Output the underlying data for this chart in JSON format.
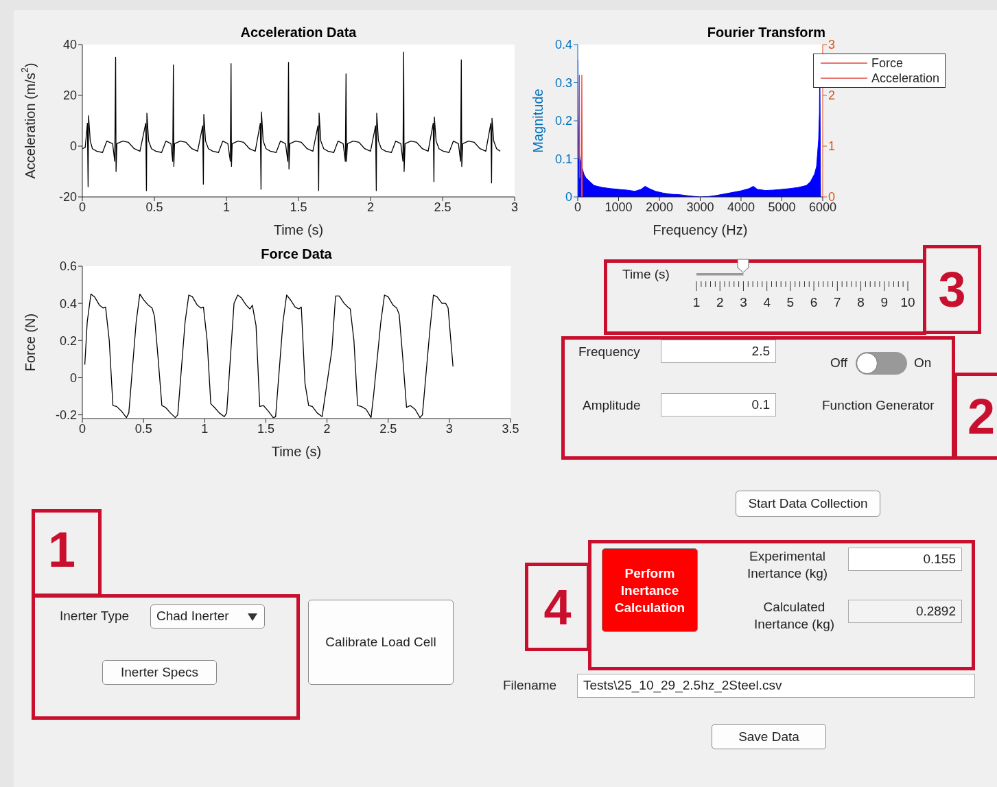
{
  "chart_data": [
    {
      "type": "line",
      "title": "Acceleration Data",
      "xlabel": "Time (s)",
      "ylabel": "Acceleration  (m/s$^{2}$)",
      "xlim": [
        0,
        3
      ],
      "xticks": [
        0,
        0.5,
        1,
        1.5,
        2,
        2.5,
        3
      ],
      "ylim": [
        -20,
        40
      ],
      "yticks": [
        -20,
        0,
        20,
        40
      ],
      "x": [
        0,
        0.02,
        0.035,
        0.04,
        0.043,
        0.055,
        0.07,
        0.1,
        0.14,
        0.17,
        0.21,
        0.225,
        0.231,
        0.234,
        0.24,
        0.28,
        0.32,
        0.36,
        0.4,
        0.44,
        0.445,
        0.448,
        0.46,
        0.48,
        0.51,
        0.55,
        0.58,
        0.615,
        0.627,
        0.632,
        0.635,
        0.64,
        0.68,
        0.72,
        0.76,
        0.8,
        0.835,
        0.84,
        0.843,
        0.855,
        0.875,
        0.905,
        0.945,
        0.975,
        1.01,
        1.027,
        1.032,
        1.035,
        1.04,
        1.08,
        1.12,
        1.16,
        1.2,
        1.235,
        1.24,
        1.243,
        1.255,
        1.275,
        1.305,
        1.345,
        1.375,
        1.41,
        1.426,
        1.431,
        1.434,
        1.44,
        1.48,
        1.52,
        1.56,
        1.6,
        1.635,
        1.64,
        1.643,
        1.655,
        1.675,
        1.705,
        1.745,
        1.775,
        1.81,
        1.825,
        1.83,
        1.833,
        1.84,
        1.88,
        1.92,
        1.96,
        2,
        2.035,
        2.04,
        2.043,
        2.055,
        2.075,
        2.105,
        2.145,
        2.175,
        2.21,
        2.225,
        2.23,
        2.233,
        2.24,
        2.28,
        2.32,
        2.36,
        2.4,
        2.435,
        2.44,
        2.443,
        2.455,
        2.475,
        2.505,
        2.545,
        2.575,
        2.61,
        2.625,
        2.63,
        2.633,
        2.64,
        2.68,
        2.72,
        2.76,
        2.8,
        2.835,
        2.84,
        2.843,
        2.855,
        2.875,
        2.9
      ],
      "series": [
        {
          "color": "#000000",
          "values": [
            -1,
            -0.5,
            9,
            -16,
            12,
            2,
            -1,
            -2,
            -2.5,
            2,
            1,
            -6,
            35,
            -10,
            1,
            2,
            1.5,
            -1,
            -2,
            9,
            -17.5,
            13,
            2,
            -1,
            -2,
            -2.5,
            2,
            1,
            -6,
            32,
            -8,
            1,
            2,
            1.5,
            -1,
            -2,
            8,
            -15,
            12.5,
            2,
            -1,
            -2,
            -2.5,
            2,
            1,
            -6,
            32.5,
            -8,
            1,
            2,
            1.5,
            -1,
            -2,
            9,
            -17,
            13.5,
            2,
            -1,
            -2,
            -2.5,
            2,
            1,
            -6,
            33,
            -9,
            1,
            2,
            1.5,
            -1,
            -2,
            8,
            -17.5,
            13,
            2,
            -1,
            -2,
            -2.5,
            2,
            1,
            -6,
            28.5,
            -6,
            1,
            2,
            1.5,
            -1,
            -2,
            8,
            -17.5,
            13,
            2,
            -1,
            -2,
            -2.5,
            2,
            1,
            -6,
            37,
            -10,
            1,
            2,
            1.5,
            -1,
            -2,
            9,
            -14,
            11.5,
            2,
            -1,
            -2,
            -2.5,
            2,
            1,
            -6,
            34,
            -8,
            1,
            2,
            1.5,
            -1,
            -2,
            9,
            -14.5,
            11,
            2,
            -1,
            -2
          ]
        }
      ]
    },
    {
      "type": "line",
      "title": "Fourier Transform",
      "xlabel": "Frequency (Hz)",
      "ylabel": "Magnitude",
      "xlim": [
        0,
        6000
      ],
      "xticks": [
        0,
        1000,
        2000,
        3000,
        4000,
        5000,
        6000
      ],
      "ylim": [
        0,
        0.4
      ],
      "yticks": [
        0,
        0.1,
        0.2,
        0.3,
        0.4
      ],
      "y2lim": [
        0,
        3
      ],
      "y2ticks": [
        0,
        1,
        2,
        3
      ],
      "legend": "top right",
      "series": [
        {
          "type": "area",
          "color": "#0000ff",
          "x": [
            0,
            10,
            30,
            60,
            100,
            150,
            200,
            300,
            400,
            600,
            800,
            1000,
            1200,
            1400,
            1550,
            1650,
            1750,
            1900,
            2100,
            2300,
            2500,
            2700,
            2900,
            3000,
            3200,
            3400,
            3600,
            3800,
            4000,
            4200,
            4300,
            4400,
            4600,
            4800,
            5000,
            5200,
            5400,
            5600,
            5700,
            5800,
            5850,
            5900,
            5920,
            5930,
            5940,
            5950
          ],
          "values": [
            0.36,
            0.22,
            0.12,
            0.1,
            0.08,
            0.06,
            0.05,
            0.04,
            0.03,
            0.025,
            0.022,
            0.02,
            0.018,
            0.015,
            0.02,
            0.028,
            0.022,
            0.015,
            0.01,
            0.007,
            0.006,
            0.003,
            0.001,
            0,
            0.001,
            0.004,
            0.008,
            0.012,
            0.016,
            0.022,
            0.028,
            0.02,
            0.017,
            0.018,
            0.02,
            0.022,
            0.025,
            0.03,
            0.04,
            0.06,
            0.08,
            0.15,
            0.22,
            0.36,
            0.19,
            0
          ]
        },
        {
          "name": "Force",
          "color": "#e0453c",
          "axis": "y2",
          "x": [
            90,
            100,
            110
          ],
          "values": [
            0,
            2.4,
            0
          ]
        },
        {
          "name": "Acceleration",
          "color": "#e0453c",
          "x": [
            30,
            40,
            50
          ],
          "values": [
            0.1,
            0.32,
            0.05
          ]
        }
      ]
    },
    {
      "type": "line",
      "title": "Force Data",
      "xlabel": "Time (s)",
      "ylabel": "Force (N)",
      "xlim": [
        0,
        3.5
      ],
      "xticks": [
        0,
        0.5,
        1,
        1.5,
        2,
        2.5,
        3,
        3.5
      ],
      "ylim": [
        -0.22,
        0.6
      ],
      "yticks": [
        -0.2,
        0,
        0.2,
        0.4,
        0.6
      ],
      "x": [
        0.02,
        0.04,
        0.07,
        0.1,
        0.14,
        0.17,
        0.19,
        0.22,
        0.25,
        0.28,
        0.32,
        0.36,
        0.38,
        0.44,
        0.47,
        0.5,
        0.54,
        0.57,
        0.59,
        0.62,
        0.65,
        0.68,
        0.72,
        0.76,
        0.78,
        0.84,
        0.87,
        0.9,
        0.94,
        0.97,
        0.99,
        1.02,
        1.05,
        1.08,
        1.12,
        1.16,
        1.18,
        1.24,
        1.27,
        1.3,
        1.34,
        1.37,
        1.39,
        1.42,
        1.45,
        1.48,
        1.52,
        1.56,
        1.58,
        1.64,
        1.67,
        1.7,
        1.74,
        1.77,
        1.79,
        1.82,
        1.85,
        1.88,
        1.92,
        1.96,
        1.98,
        2.04,
        2.07,
        2.1,
        2.14,
        2.17,
        2.19,
        2.22,
        2.25,
        2.28,
        2.32,
        2.36,
        2.38,
        2.44,
        2.47,
        2.5,
        2.54,
        2.57,
        2.59,
        2.62,
        2.65,
        2.68,
        2.72,
        2.76,
        2.78,
        2.84,
        2.87,
        2.9,
        2.94,
        2.97,
        2.99,
        3.03
      ],
      "series": [
        {
          "color": "#000000",
          "values": [
            0.07,
            0.3,
            0.45,
            0.435,
            0.39,
            0.375,
            0.38,
            0.2,
            -0.15,
            -0.155,
            -0.18,
            -0.215,
            -0.19,
            0.3,
            0.45,
            0.42,
            0.39,
            0.375,
            0.33,
            0.1,
            -0.15,
            -0.16,
            -0.19,
            -0.215,
            -0.2,
            0.3,
            0.445,
            0.435,
            0.39,
            0.375,
            0.38,
            0.2,
            -0.14,
            -0.16,
            -0.19,
            -0.21,
            -0.19,
            0.4,
            0.445,
            0.43,
            0.39,
            0.37,
            0.39,
            0.28,
            -0.155,
            -0.15,
            -0.18,
            -0.215,
            -0.21,
            0.3,
            0.445,
            0.42,
            0.38,
            0.37,
            0.38,
            -0.03,
            -0.15,
            -0.155,
            -0.19,
            -0.21,
            -0.12,
            0.15,
            0.44,
            0.44,
            0.4,
            0.38,
            0.37,
            0.2,
            -0.15,
            -0.155,
            -0.17,
            -0.215,
            -0.1,
            0.3,
            0.445,
            0.435,
            0.39,
            0.375,
            0.34,
            0.1,
            -0.16,
            -0.15,
            -0.17,
            -0.215,
            -0.2,
            0.25,
            0.445,
            0.435,
            0.4,
            0.4,
            0.375,
            0.06
          ]
        }
      ]
    },
    {
      "type": "bar",
      "orientation": "horizontal",
      "xlabel": "Time (s)",
      "categories": [
        null
      ],
      "values": [
        3
      ],
      "color": "#999999",
      "xlim": [
        1,
        10
      ],
      "xticks": [
        1,
        2,
        3,
        4,
        5,
        6,
        7,
        8,
        9,
        10
      ],
      "annotations": [
        "3"
      ]
    },
    {
      "type": "other",
      "annotations": [
        "Frequency",
        "2.5",
        "Off",
        "On",
        "Amplitude",
        "0.1",
        "Function Generator",
        "2",
        "Start Data Collection",
        "1",
        "4",
        "Perform Inertance Calculation",
        "Experimental Inertance (kg)",
        "0.155",
        "Calculated Inertance (kg)",
        "0.2892",
        "Inerter Type",
        "Chad Inerter",
        "Inerter Specs",
        "Calibrate Load Cell",
        "Filename",
        "Tests\\25_10_29_2.5hz_2Steel.csv",
        "Save Data"
      ]
    }
  ]
}
